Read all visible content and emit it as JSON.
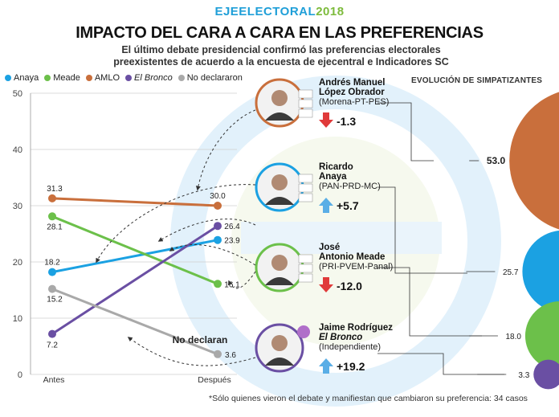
{
  "brand": {
    "part1": "EJEELECTORAL",
    "part2": "2018"
  },
  "title": "IMPACTO DEL CARA A CARA EN LAS PREFERENCIAS",
  "subtitle_line1": "El último debate presidencial confirmó las preferencias electorales",
  "subtitle_line2": "preexistentes de acuerdo a la encuesta de ejecentral e Indicadores SC",
  "evolution_title": "EVOLUCIÓN DE SIMPATIZANTES",
  "no_declaran_label": "No declaran",
  "footnote": "*Sólo quienes vieron el debate y manifiestan que cambiaron su preferencia: 34 casos",
  "colors": {
    "anaya": "#1ba1e2",
    "meade": "#6cc04a",
    "amlo": "#c96f3c",
    "bronco": "#6a4fa3",
    "none": "#a9a9a9",
    "up": "#5aaee6",
    "down": "#e03a3a"
  },
  "candidates": [
    {
      "name_line1": "Andrés Manuel",
      "name_line2": "López Obrador",
      "name_italic": false,
      "party": "(Morena-PT-PES)",
      "change": "-1.3",
      "direction": "down",
      "color": "#c96f3c"
    },
    {
      "name_line1": "Ricardo",
      "name_line2": "Anaya",
      "name_italic": false,
      "party": "(PAN-PRD-MC)",
      "change": "+5.7",
      "direction": "up",
      "color": "#1ba1e2"
    },
    {
      "name_line1": "José",
      "name_line2": "Antonio Meade",
      "name_italic": false,
      "party": "(PRI-PVEM-Panal)",
      "change": "-12.0",
      "direction": "down",
      "color": "#6cc04a"
    },
    {
      "name_line1": "Jaime Rodríguez",
      "name_line2": "El Bronco",
      "name_italic": true,
      "party": "(Independiente)",
      "change": "+19.2",
      "direction": "up",
      "color": "#6a4fa3"
    }
  ],
  "chart_data": [
    {
      "type": "line",
      "categories": [
        "Antes",
        "Después"
      ],
      "ylim": [
        0,
        50
      ],
      "yticks": [
        0,
        10,
        20,
        30,
        40,
        50
      ],
      "grid": true,
      "legend_placement": "top-left",
      "series": [
        {
          "name": "Anaya",
          "color": "#1ba1e2",
          "values": [
            18.2,
            23.9
          ]
        },
        {
          "name": "Meade",
          "color": "#6cc04a",
          "values": [
            28.1,
            16.1
          ]
        },
        {
          "name": "AMLO",
          "color": "#c96f3c",
          "values": [
            31.3,
            30.0
          ]
        },
        {
          "name": "El Bronco",
          "color": "#6a4fa3",
          "values": [
            7.2,
            26.4
          ],
          "italic": true
        },
        {
          "name": "No declararon",
          "color": "#a9a9a9",
          "values": [
            15.2,
            3.6
          ]
        }
      ]
    },
    {
      "type": "bubble",
      "title": "EVOLUCIÓN DE SIMPATIZANTES",
      "values": [
        {
          "label": "53.0",
          "value": 53.0,
          "color": "#c96f3c"
        },
        {
          "label": "25.7",
          "value": 25.7,
          "color": "#1ba1e2"
        },
        {
          "label": "18.0",
          "value": 18.0,
          "color": "#6cc04a"
        },
        {
          "label": "3.3",
          "value": 3.3,
          "color": "#6a4fa3"
        }
      ]
    }
  ]
}
